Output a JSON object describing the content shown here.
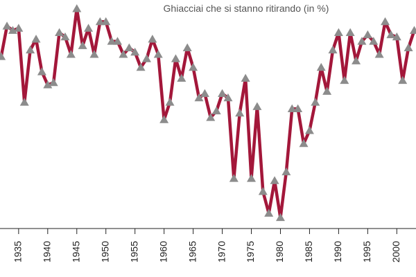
{
  "chart_data": {
    "type": "line",
    "title": "Ghiacciai che si stanno ritirando (in %)",
    "x": [
      1932,
      1933,
      1934,
      1935,
      1936,
      1937,
      1938,
      1939,
      1940,
      1941,
      1942,
      1943,
      1944,
      1945,
      1946,
      1947,
      1948,
      1949,
      1950,
      1951,
      1952,
      1953,
      1954,
      1955,
      1956,
      1957,
      1958,
      1959,
      1960,
      1961,
      1962,
      1963,
      1964,
      1965,
      1966,
      1967,
      1968,
      1969,
      1970,
      1971,
      1972,
      1973,
      1974,
      1975,
      1976,
      1977,
      1978,
      1979,
      1980,
      1981,
      1982,
      1983,
      1984,
      1985,
      1986,
      1987,
      1988,
      1989,
      1990,
      1991,
      1992,
      1993,
      1994,
      1995,
      1996,
      1997,
      1998,
      1999,
      2000,
      2001,
      2002,
      2003
    ],
    "values": [
      79,
      93,
      91,
      92,
      58,
      82,
      87,
      72,
      66,
      67,
      90,
      88,
      80,
      101,
      84,
      92,
      80,
      95,
      95,
      86,
      86,
      80,
      83,
      81,
      74,
      78,
      87,
      80,
      50,
      58,
      78,
      69,
      83,
      74,
      60,
      62,
      51,
      54,
      62,
      60,
      23,
      53,
      69,
      23,
      56,
      17,
      7,
      22,
      5,
      26,
      55,
      55,
      39,
      45,
      58,
      74,
      63,
      82,
      90,
      68,
      90,
      77,
      86,
      89,
      86,
      80,
      95,
      89,
      88,
      68,
      83,
      91
    ],
    "color": "#a3173a",
    "marker_color": "#8c8c8c",
    "xlim": [
      1931.8,
      2003.3
    ],
    "ylim": [
      0,
      105
    ],
    "xticks": [
      1935,
      1940,
      1945,
      1950,
      1955,
      1960,
      1965,
      1970,
      1975,
      1980,
      1985,
      1990,
      1995,
      2000
    ]
  }
}
